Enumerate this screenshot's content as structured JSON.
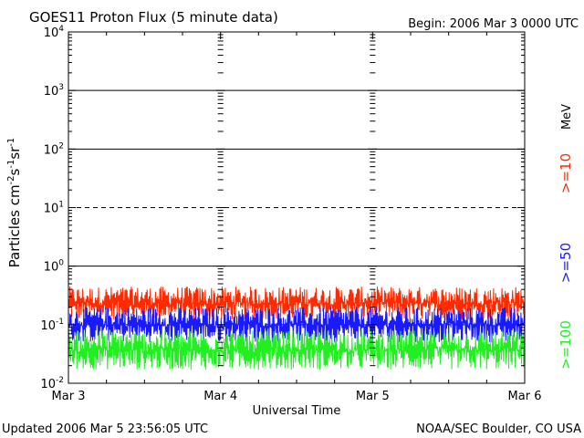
{
  "chart_data": {
    "type": "line",
    "title": "GOES11 Proton Flux (5 minute data)",
    "begin_label": "Begin: 2006 Mar 3 0000 UTC",
    "xlabel": "Universal Time",
    "ylabel_main": "Particles cm",
    "ylabel_exp1": "-2",
    "ylabel_mid1": "s",
    "ylabel_exp2": "-1",
    "ylabel_mid2": "sr",
    "ylabel_exp3": "-1",
    "x_ticks": [
      "Mar 3",
      "Mar 4",
      "Mar 5",
      "Mar 6"
    ],
    "x_range_days": [
      0,
      3
    ],
    "y_scale": "log",
    "y_ticks": [
      {
        "base": "10",
        "exp": "4",
        "value": 10000
      },
      {
        "base": "10",
        "exp": "3",
        "value": 1000
      },
      {
        "base": "10",
        "exp": "2",
        "value": 100
      },
      {
        "base": "10",
        "exp": "1",
        "value": 10
      },
      {
        "base": "10",
        "exp": "0",
        "value": 1
      },
      {
        "base": "10",
        "exp": "-1",
        "value": 0.1
      },
      {
        "base": "10",
        "exp": "-2",
        "value": 0.01
      }
    ],
    "ylim": [
      0.01,
      10000
    ],
    "reference_lines": [
      {
        "value": 1000,
        "style": "solid"
      },
      {
        "value": 100,
        "style": "solid"
      },
      {
        "value": 10,
        "style": "dashed"
      },
      {
        "value": 1,
        "style": "solid"
      },
      {
        "value": 0.1,
        "style": "dashed"
      }
    ],
    "series": [
      {
        "name": ">=10 MeV",
        "color": "#ff2a00",
        "typical_min": 0.12,
        "typical_max": 0.45
      },
      {
        "name": ">=50",
        "color": "#1a1aff",
        "typical_min": 0.05,
        "typical_max": 0.2
      },
      {
        "name": ">=100",
        "color": "#22ee22",
        "typical_min": 0.017,
        "typical_max": 0.08
      }
    ],
    "legend_labels": {
      "s1": ">=10",
      "s1_unit": "MeV",
      "s2": ">=50",
      "s3": ">=100"
    },
    "legend_placement": "right"
  },
  "footer": {
    "updated": "Updated 2006 Mar  5 23:56:05 UTC",
    "source": "NOAA/SEC Boulder, CO USA"
  }
}
